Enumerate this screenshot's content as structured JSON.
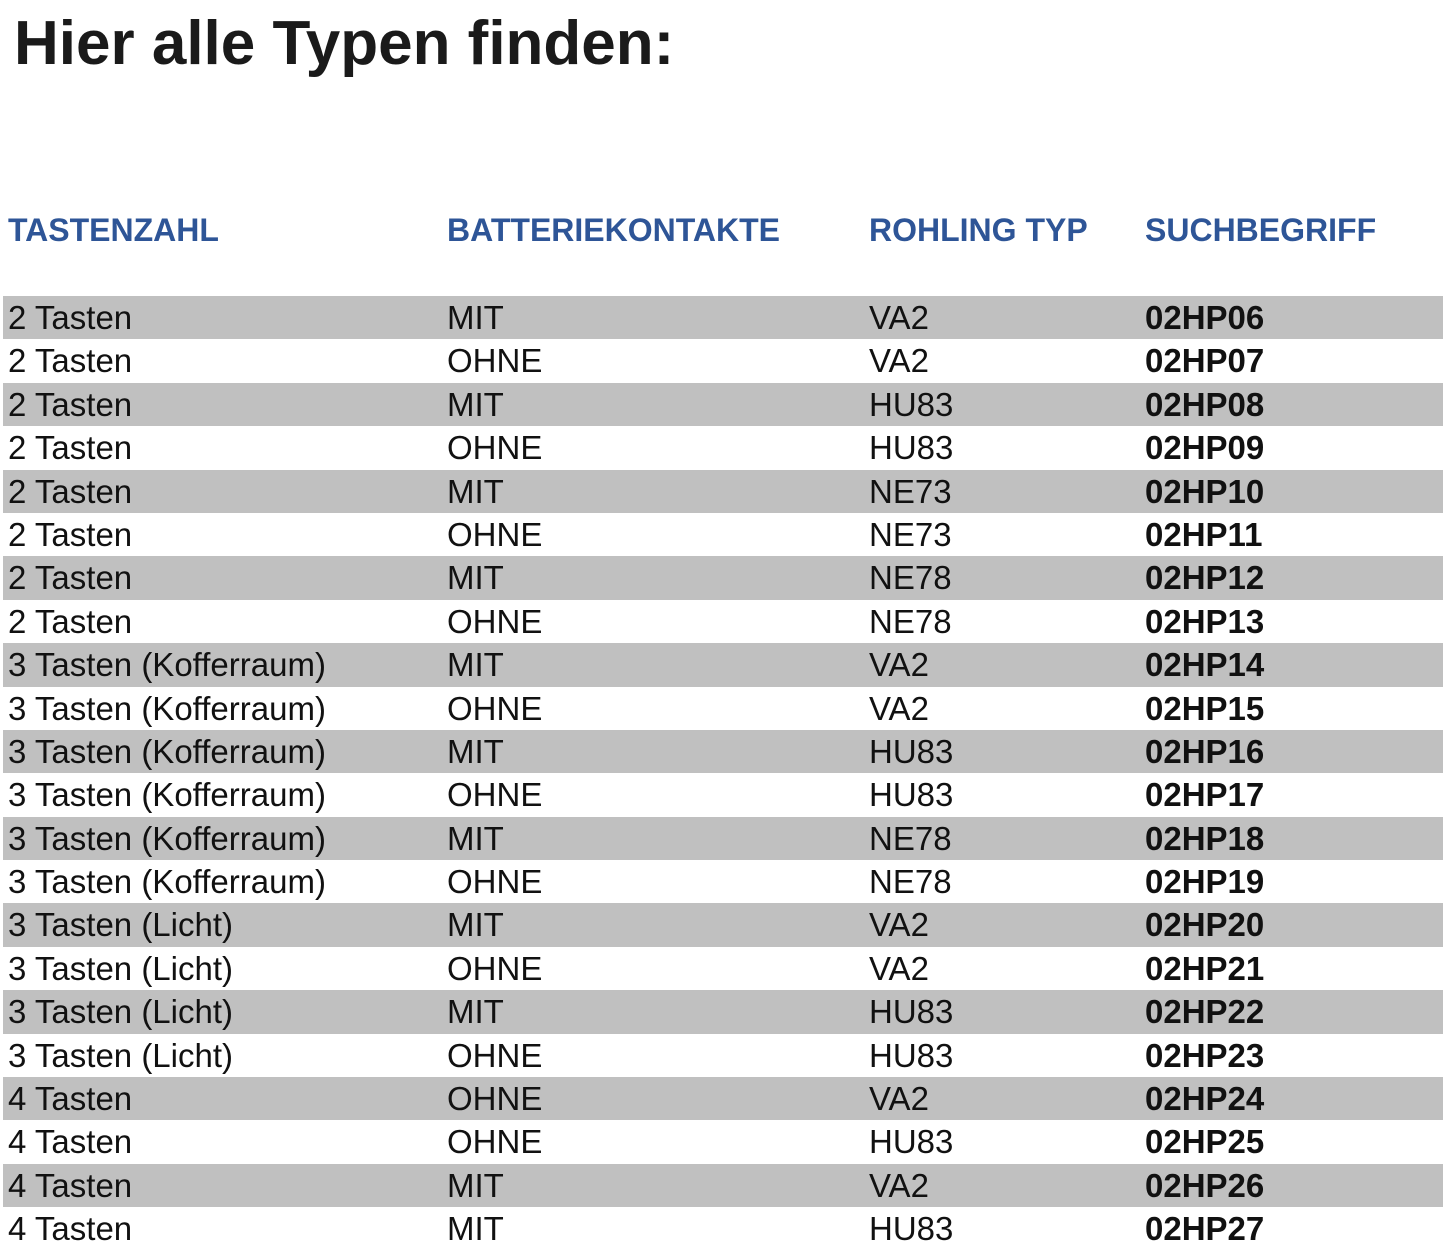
{
  "title": "Hier alle Typen finden:",
  "colors": {
    "header": "#2e5597",
    "stripe": "#c0c0c0"
  },
  "headers": [
    "TASTENZAHL",
    "BATTERIEKONTAKTE",
    "ROHLING TYP",
    "SUCHBEGRIFF"
  ],
  "rows": [
    [
      "2 Tasten",
      "MIT",
      "VA2",
      "02HP06"
    ],
    [
      "2 Tasten",
      "OHNE",
      "VA2",
      "02HP07"
    ],
    [
      "2 Tasten",
      "MIT",
      "HU83",
      "02HP08"
    ],
    [
      "2 Tasten",
      "OHNE",
      "HU83",
      "02HP09"
    ],
    [
      "2 Tasten",
      "MIT",
      "NE73",
      "02HP10"
    ],
    [
      "2 Tasten",
      "OHNE",
      "NE73",
      "02HP11"
    ],
    [
      "2 Tasten",
      "MIT",
      "NE78",
      "02HP12"
    ],
    [
      "2 Tasten",
      "OHNE",
      "NE78",
      "02HP13"
    ],
    [
      "3 Tasten (Kofferraum)",
      "MIT",
      "VA2",
      "02HP14"
    ],
    [
      "3 Tasten (Kofferraum)",
      "OHNE",
      "VA2",
      "02HP15"
    ],
    [
      "3 Tasten (Kofferraum)",
      "MIT",
      "HU83",
      "02HP16"
    ],
    [
      "3 Tasten (Kofferraum)",
      "OHNE",
      "HU83",
      "02HP17"
    ],
    [
      "3 Tasten (Kofferraum)",
      "MIT",
      "NE78",
      "02HP18"
    ],
    [
      "3 Tasten (Kofferraum)",
      "OHNE",
      "NE78",
      "02HP19"
    ],
    [
      "3 Tasten (Licht)",
      "MIT",
      "VA2",
      "02HP20"
    ],
    [
      "3 Tasten (Licht)",
      "OHNE",
      "VA2",
      "02HP21"
    ],
    [
      "3 Tasten (Licht)",
      "MIT",
      "HU83",
      "02HP22"
    ],
    [
      "3 Tasten (Licht)",
      "OHNE",
      "HU83",
      "02HP23"
    ],
    [
      "4 Tasten",
      "OHNE",
      "VA2",
      "02HP24"
    ],
    [
      "4 Tasten",
      "OHNE",
      "HU83",
      "02HP25"
    ],
    [
      "4 Tasten",
      "MIT",
      "VA2",
      "02HP26"
    ],
    [
      "4 Tasten",
      "MIT",
      "HU83",
      "02HP27"
    ]
  ]
}
